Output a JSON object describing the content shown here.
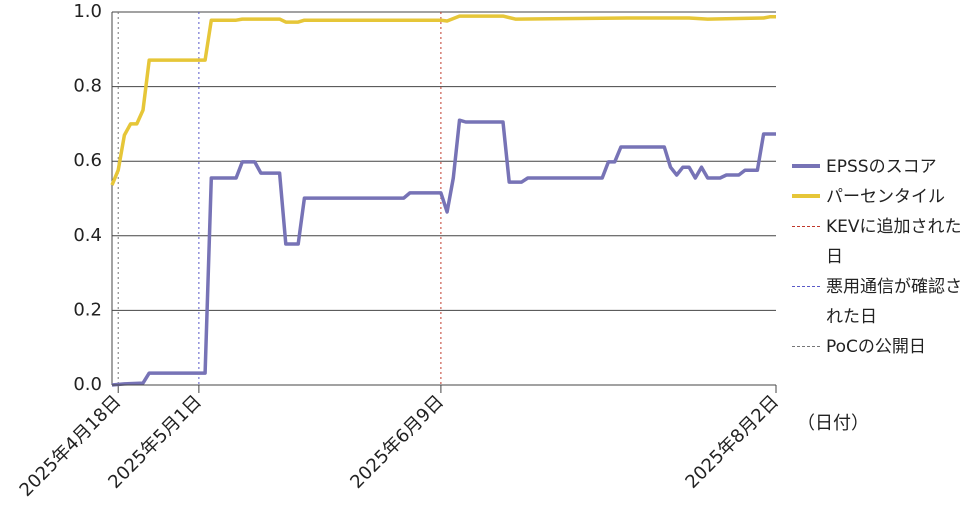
{
  "chart_data": {
    "type": "line",
    "x_label": "（日付）",
    "xlim": [
      "2025-04-17",
      "2025-08-02"
    ],
    "xticks": [
      {
        "value": "2025-04-18",
        "label": "2025年4月18日"
      },
      {
        "value": "2025-05-01",
        "label": "2025年5月1日"
      },
      {
        "value": "2025-06-09",
        "label": "2025年6月9日"
      },
      {
        "value": "2025-08-02",
        "label": "2025年8月2日"
      }
    ],
    "ylim": [
      0,
      1
    ],
    "yticks": [
      {
        "value": 0,
        "label": "0.0"
      },
      0.2,
      0.4,
      0.6,
      0.8,
      {
        "value": 1,
        "label": "1.0"
      }
    ],
    "grid": true,
    "legend": "right",
    "series": [
      {
        "name": "EPSSのスコア",
        "color": "#7773b6",
        "x": [
          "2025-04-17",
          "2025-04-19",
          "2025-04-22",
          "2025-04-23",
          "2025-05-02",
          "2025-05-03",
          "2025-05-07",
          "2025-05-08",
          "2025-05-10",
          "2025-05-11",
          "2025-05-14",
          "2025-05-15",
          "2025-05-17",
          "2025-05-18",
          "2025-06-03",
          "2025-06-04",
          "2025-06-09",
          "2025-06-10",
          "2025-06-11",
          "2025-06-12",
          "2025-06-13",
          "2025-06-19",
          "2025-06-20",
          "2025-06-22",
          "2025-06-23",
          "2025-07-05",
          "2025-07-06",
          "2025-07-07",
          "2025-07-08",
          "2025-07-15",
          "2025-07-16",
          "2025-07-17",
          "2025-07-18",
          "2025-07-19",
          "2025-07-20",
          "2025-07-21",
          "2025-07-22",
          "2025-07-24",
          "2025-07-25",
          "2025-07-27",
          "2025-07-28",
          "2025-07-30",
          "2025-07-31",
          "2025-08-02"
        ],
        "values": [
          0.0,
          0.003,
          0.005,
          0.032,
          0.032,
          0.555,
          0.555,
          0.598,
          0.598,
          0.568,
          0.568,
          0.378,
          0.378,
          0.501,
          0.501,
          0.515,
          0.515,
          0.464,
          0.555,
          0.71,
          0.705,
          0.705,
          0.544,
          0.544,
          0.555,
          0.555,
          0.598,
          0.598,
          0.638,
          0.638,
          0.584,
          0.563,
          0.584,
          0.584,
          0.555,
          0.584,
          0.555,
          0.555,
          0.563,
          0.563,
          0.576,
          0.576,
          0.673,
          0.673
        ]
      },
      {
        "name": "パーセンタイル",
        "color": "#e6c638",
        "x": [
          "2025-04-17",
          "2025-04-18",
          "2025-04-19",
          "2025-04-20",
          "2025-04-21",
          "2025-04-22",
          "2025-04-23",
          "2025-05-02",
          "2025-05-03",
          "2025-05-07",
          "2025-05-08",
          "2025-05-14",
          "2025-05-15",
          "2025-05-17",
          "2025-05-18",
          "2025-06-09",
          "2025-06-10",
          "2025-06-12",
          "2025-06-19",
          "2025-06-21",
          "2025-07-09",
          "2025-07-19",
          "2025-07-22",
          "2025-07-31",
          "2025-08-01",
          "2025-08-02"
        ],
        "values": [
          0.536,
          0.576,
          0.67,
          0.7,
          0.7,
          0.737,
          0.871,
          0.871,
          0.978,
          0.978,
          0.981,
          0.981,
          0.973,
          0.973,
          0.978,
          0.978,
          0.976,
          0.989,
          0.989,
          0.981,
          0.984,
          0.984,
          0.981,
          0.984,
          0.987,
          0.987
        ]
      }
    ],
    "reference_lines": [
      {
        "name": "KEVに追加された日",
        "x": "2025-06-09",
        "color": "#c0392b"
      },
      {
        "name": "悪用通信が確認された日",
        "x": "2025-05-01",
        "color": "#5a5ac8"
      },
      {
        "name": "PoCの公開日",
        "x": "2025-04-18",
        "color": "#777777"
      }
    ]
  }
}
